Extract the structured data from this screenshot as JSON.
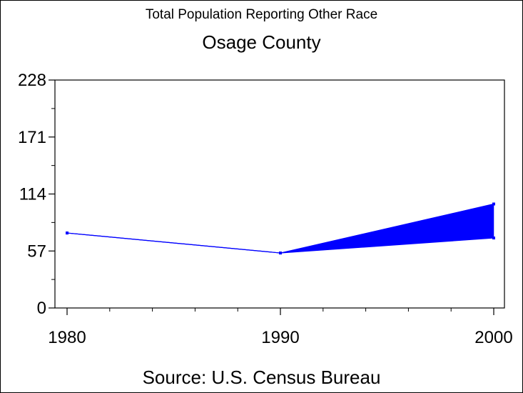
{
  "chart_data": {
    "type": "line",
    "title": "Total Population Reporting Other Race",
    "subtitle": "Osage County",
    "footnote": "Source: U.S. Census Bureau",
    "x": [
      1980,
      1990,
      2000
    ],
    "series": [
      {
        "values": [
          75,
          55,
          104
        ],
        "color": "#0000ff"
      },
      {
        "values": [
          75,
          55,
          70
        ],
        "color": "#0000ff"
      }
    ],
    "band_fill": "#0000ff",
    "xticks": [
      1980,
      1990,
      2000
    ],
    "yticks": [
      0,
      57,
      114,
      171,
      228
    ],
    "xlim": [
      1980,
      2000
    ],
    "ylim": [
      0,
      228
    ],
    "grid": false
  }
}
